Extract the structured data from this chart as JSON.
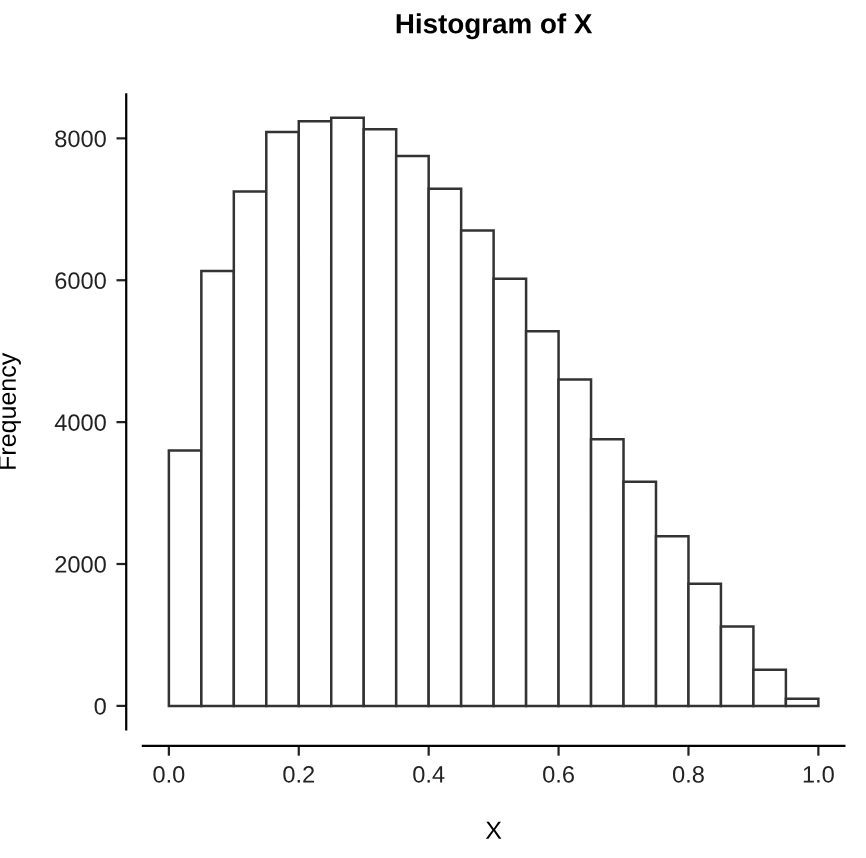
{
  "chart_data": {
    "type": "histogram",
    "title": "Histogram of X",
    "xlabel": "X",
    "ylabel": "Frequency",
    "bins": [
      0,
      0.05,
      0.1,
      0.15,
      0.2,
      0.25,
      0.3,
      0.35,
      0.4,
      0.45,
      0.5,
      0.55,
      0.6,
      0.65,
      0.7,
      0.75,
      0.8,
      0.85,
      0.9,
      0.95,
      1.0
    ],
    "values": [
      3600,
      6130,
      7250,
      8090,
      8240,
      8290,
      8130,
      7750,
      7290,
      6700,
      6020,
      5280,
      4600,
      3760,
      3160,
      2390,
      1720,
      1120,
      510,
      100
    ],
    "color": "#ffffff",
    "xlim": [
      -0.04,
      1.04
    ],
    "ylim": [
      -330,
      8620
    ],
    "xticks": [
      {
        "value": 0,
        "label": "0.0"
      },
      {
        "value": 0.2,
        "label": "0.2"
      },
      {
        "value": 0.4,
        "label": "0.4"
      },
      {
        "value": 0.6,
        "label": "0.6"
      },
      {
        "value": 0.8,
        "label": "0.8"
      },
      {
        "value": 1.0,
        "label": "1.0"
      }
    ],
    "yticks": [
      0,
      2000,
      4000,
      6000,
      8000
    ],
    "grid": false
  }
}
